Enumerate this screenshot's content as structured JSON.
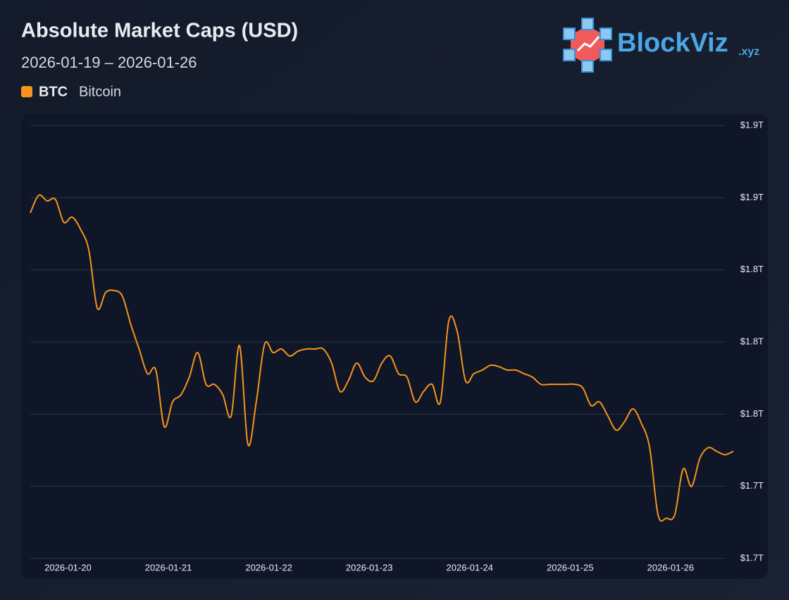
{
  "logo": {
    "name": "BlockViz",
    "suffix": ".xyz"
  },
  "chart_data": {
    "type": "line",
    "title": "Absolute Market Caps (USD)",
    "subtitle": "2026-01-19 – 2026-01-26",
    "x": [
      "2026-01-19T15:00",
      "2026-01-19T17:00",
      "2026-01-19T19:00",
      "2026-01-19T21:00",
      "2026-01-19T23:00",
      "2026-01-20T01:00",
      "2026-01-20T03:00",
      "2026-01-20T05:00",
      "2026-01-20T07:00",
      "2026-01-20T09:00",
      "2026-01-20T11:00",
      "2026-01-20T13:00",
      "2026-01-20T15:00",
      "2026-01-20T17:00",
      "2026-01-20T19:00",
      "2026-01-20T21:00",
      "2026-01-20T23:00",
      "2026-01-21T01:00",
      "2026-01-21T03:00",
      "2026-01-21T05:00",
      "2026-01-21T07:00",
      "2026-01-21T09:00",
      "2026-01-21T11:00",
      "2026-01-21T13:00",
      "2026-01-21T15:00",
      "2026-01-21T17:00",
      "2026-01-21T19:00",
      "2026-01-21T21:00",
      "2026-01-21T23:00",
      "2026-01-22T01:00",
      "2026-01-22T03:00",
      "2026-01-22T05:00",
      "2026-01-22T07:00",
      "2026-01-22T09:00",
      "2026-01-22T11:00",
      "2026-01-22T13:00",
      "2026-01-22T15:00",
      "2026-01-22T17:00",
      "2026-01-22T19:00",
      "2026-01-22T21:00",
      "2026-01-22T23:00",
      "2026-01-23T01:00",
      "2026-01-23T03:00",
      "2026-01-23T05:00",
      "2026-01-23T07:00",
      "2026-01-23T09:00",
      "2026-01-23T11:00",
      "2026-01-23T13:00",
      "2026-01-23T15:00",
      "2026-01-23T17:00",
      "2026-01-23T19:00",
      "2026-01-23T21:00",
      "2026-01-23T23:00",
      "2026-01-24T01:00",
      "2026-01-24T03:00",
      "2026-01-24T05:00",
      "2026-01-24T07:00",
      "2026-01-24T09:00",
      "2026-01-24T11:00",
      "2026-01-24T13:00",
      "2026-01-24T15:00",
      "2026-01-24T17:00",
      "2026-01-24T19:00",
      "2026-01-24T21:00",
      "2026-01-24T23:00",
      "2026-01-25T01:00",
      "2026-01-25T03:00",
      "2026-01-25T05:00",
      "2026-01-25T07:00",
      "2026-01-25T09:00",
      "2026-01-25T11:00",
      "2026-01-25T13:00",
      "2026-01-25T15:00",
      "2026-01-25T17:00",
      "2026-01-25T19:00",
      "2026-01-25T21:00",
      "2026-01-25T23:00",
      "2026-01-26T01:00",
      "2026-01-26T03:00",
      "2026-01-26T05:00",
      "2026-01-26T07:00",
      "2026-01-26T09:00",
      "2026-01-26T11:00",
      "2026-01-26T13:00",
      "2026-01-26T15:00"
    ],
    "series": [
      {
        "name": "BTC",
        "label": "Bitcoin",
        "color": "#f7931a",
        "values": [
          1871500000000,
          1881300000000,
          1878200000000,
          1879000000000,
          1866400000000,
          1869200000000,
          1862500000000,
          1850800000000,
          1818800000000,
          1827400000000,
          1828500000000,
          1825400000000,
          1809800000000,
          1796100000000,
          1782400000000,
          1784400000000,
          1753100000000,
          1766800000000,
          1770700000000,
          1780500000000,
          1794100000000,
          1776500000000,
          1776500000000,
          1770700000000,
          1759000000000,
          1798000000000,
          1743300000000,
          1766800000000,
          1798800000000,
          1794100000000,
          1796100000000,
          1792200000000,
          1794900000000,
          1796100000000,
          1796100000000,
          1796100000000,
          1788300000000,
          1772600000000,
          1778500000000,
          1788300000000,
          1780500000000,
          1778500000000,
          1788300000000,
          1792200000000,
          1782400000000,
          1780500000000,
          1766800000000,
          1772600000000,
          1776500000000,
          1766800000000,
          1811700000000,
          1805900000000,
          1778500000000,
          1782400000000,
          1784400000000,
          1787100000000,
          1786300000000,
          1784400000000,
          1784400000000,
          1782400000000,
          1780500000000,
          1776500000000,
          1776500000000,
          1776500000000,
          1776500000000,
          1776500000000,
          1774600000000,
          1764800000000,
          1766800000000,
          1759000000000,
          1751100000000,
          1755800000000,
          1762900000000,
          1755000000000,
          1741400000000,
          1704200000000,
          1702300000000,
          1704200000000,
          1729600000000,
          1719900000000,
          1735500000000,
          1741400000000,
          1739400000000,
          1737500000000,
          1739400000000
        ]
      }
    ],
    "xlim": [
      "2026-01-19T15:00",
      "2026-01-26T15:00"
    ],
    "xticks": [
      "2026-01-20",
      "2026-01-21",
      "2026-01-22",
      "2026-01-23",
      "2026-01-24",
      "2026-01-25",
      "2026-01-26"
    ],
    "ylim": [
      1680000000000,
      1920000000000
    ],
    "yticks": [
      {
        "value": 1680000000000,
        "label": "$1.7T"
      },
      {
        "value": 1720000000000,
        "label": "$1.7T"
      },
      {
        "value": 1760000000000,
        "label": "$1.8T"
      },
      {
        "value": 1800000000000,
        "label": "$1.8T"
      },
      {
        "value": 1840000000000,
        "label": "$1.8T"
      },
      {
        "value": 1880000000000,
        "label": "$1.9T"
      },
      {
        "value": 1920000000000,
        "label": "$1.9T"
      }
    ],
    "grid": true
  }
}
